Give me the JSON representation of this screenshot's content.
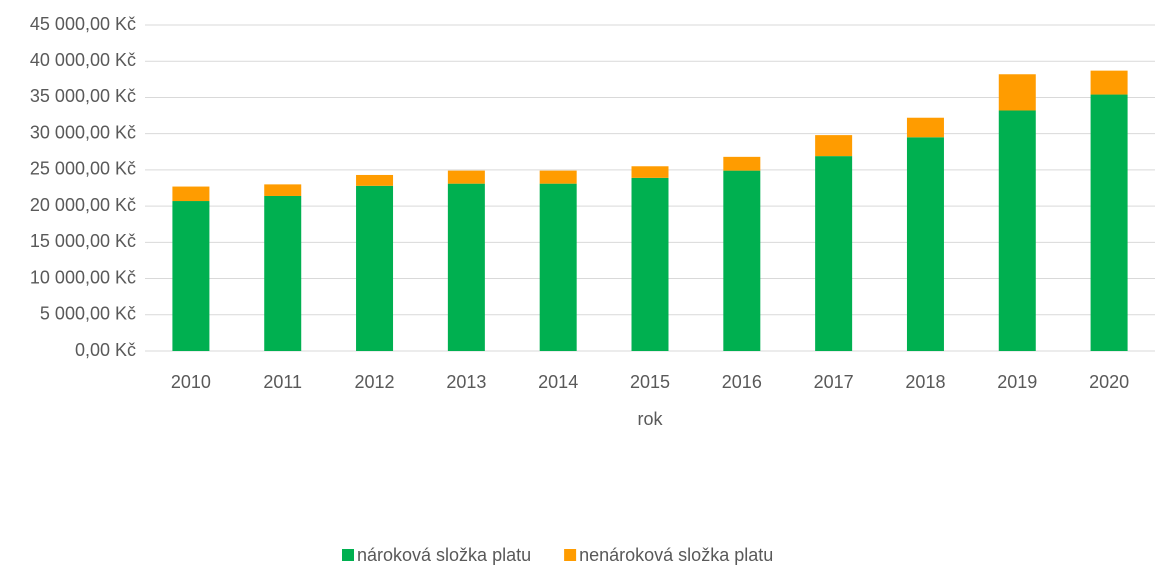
{
  "chart_data": {
    "type": "stacked_bar",
    "x_label": "rok",
    "categories": [
      "2010",
      "2011",
      "2012",
      "2013",
      "2014",
      "2015",
      "2016",
      "2017",
      "2018",
      "2019",
      "2020"
    ],
    "series": [
      {
        "name": "nároková složka platu",
        "color": "#00b050",
        "values": [
          20700,
          21400,
          22800,
          23100,
          23100,
          23900,
          24900,
          26900,
          29500,
          33200,
          35400
        ]
      },
      {
        "name": "nenároková složka platu",
        "color": "#ff9c00",
        "values": [
          2000,
          1600,
          1500,
          1800,
          1800,
          1600,
          1900,
          2900,
          2700,
          5000,
          3300
        ]
      }
    ],
    "ylim": [
      0,
      45000
    ],
    "yticks": [
      {
        "value": 0,
        "label": "0,00 Kč"
      },
      {
        "value": 5000,
        "label": "5 000,00 Kč"
      },
      {
        "value": 10000,
        "label": "10 000,00 Kč"
      },
      {
        "value": 15000,
        "label": "15 000,00 Kč"
      },
      {
        "value": 20000,
        "label": "20 000,00 Kč"
      },
      {
        "value": 25000,
        "label": "25 000,00 Kč"
      },
      {
        "value": 30000,
        "label": "30 000,00 Kč"
      },
      {
        "value": 35000,
        "label": "35 000,00 Kč"
      },
      {
        "value": 40000,
        "label": "40 000,00 Kč"
      },
      {
        "value": 45000,
        "label": "45 000,00 Kč"
      }
    ],
    "grid": true,
    "legend": "bottom"
  }
}
